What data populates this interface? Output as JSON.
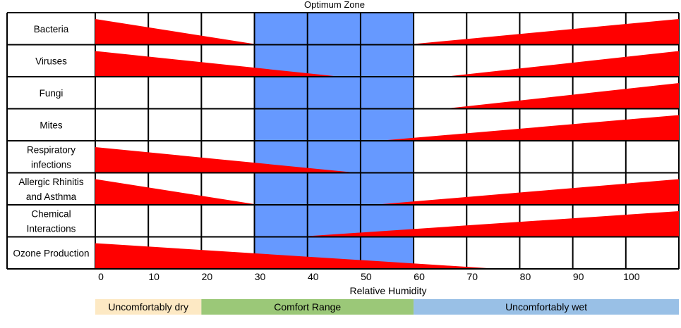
{
  "chart_data": {
    "type": "table",
    "title": "Optimum Zone",
    "xlabel": "Relative Humidity",
    "xlim": [
      0,
      110
    ],
    "x_ticks": [
      "0",
      "10",
      "20",
      "30",
      "40",
      "50",
      "60",
      "70",
      "80",
      "90",
      "100"
    ],
    "grid": true,
    "optimum_zone": {
      "from": 30,
      "to": 60,
      "color": "#6699ff"
    },
    "risk_color": "#ff0000",
    "rows": [
      {
        "label": [
          "Bacteria"
        ],
        "segments": [
          {
            "from": 0,
            "to": 30,
            "max_side": "left"
          },
          {
            "from": 60,
            "to": 110,
            "max_side": "right"
          }
        ]
      },
      {
        "label": [
          "Viruses"
        ],
        "segments": [
          {
            "from": 0,
            "to": 45,
            "max_side": "left"
          },
          {
            "from": 67,
            "to": 110,
            "max_side": "right"
          }
        ]
      },
      {
        "label": [
          "Fungi"
        ],
        "segments": [
          {
            "from": 67,
            "to": 110,
            "max_side": "right"
          }
        ]
      },
      {
        "label": [
          "Mites"
        ],
        "segments": [
          {
            "from": 55,
            "to": 110,
            "max_side": "right"
          }
        ]
      },
      {
        "label": [
          "Respiratory",
          "infections"
        ],
        "segments": [
          {
            "from": 0,
            "to": 48,
            "max_side": "left"
          }
        ]
      },
      {
        "label": [
          "Allergic Rhinitis",
          "and Asthma"
        ],
        "segments": [
          {
            "from": 0,
            "to": 30,
            "max_side": "left"
          },
          {
            "from": 54,
            "to": 110,
            "max_side": "right"
          }
        ]
      },
      {
        "label": [
          "Chemical",
          "Interactions"
        ],
        "segments": [
          {
            "from": 40,
            "to": 110,
            "max_side": "right"
          }
        ]
      },
      {
        "label": [
          "Ozone Production"
        ],
        "segments": [
          {
            "from": 0,
            "to": 74,
            "max_side": "left"
          }
        ]
      }
    ],
    "bands": [
      {
        "label": "Uncomfortably dry",
        "from": 0,
        "to": 20,
        "color": "#fde9c4"
      },
      {
        "label": "Comfort Range",
        "from": 20,
        "to": 60,
        "color": "#9bc878"
      },
      {
        "label": "Uncomfortably wet",
        "from": 60,
        "to": 110,
        "color": "#99c0e6"
      }
    ]
  }
}
